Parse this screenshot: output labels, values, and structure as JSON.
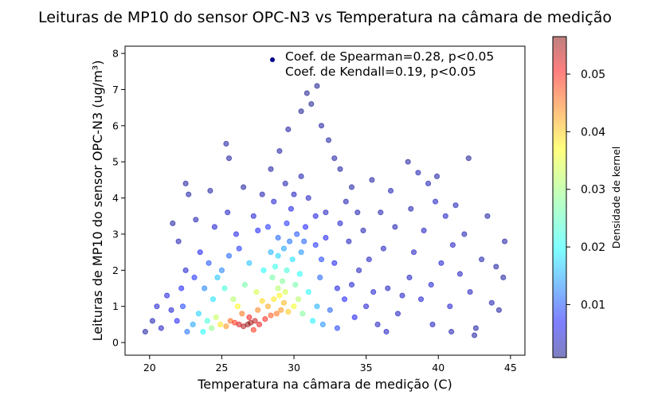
{
  "chart_data": {
    "type": "scatter",
    "title": "Leituras de MP10 do sensor OPC-N3 vs Temperatura na câmara de medição",
    "xlabel": "Temperatura na câmara de medição (C)",
    "ylabel": "Leituras de MP10 do sensor OPC-N3 (ug/m³)",
    "xlim": [
      18.3,
      46.0
    ],
    "ylim": [
      -0.35,
      8.2
    ],
    "x_ticks": [
      20,
      25,
      30,
      35,
      40,
      45
    ],
    "y_ticks": [
      0,
      1,
      2,
      3,
      4,
      5,
      6,
      7,
      8
    ],
    "grid": false,
    "legend": {
      "position": "top-right",
      "entries": [
        "Coef. de Spearman=0.28, p<0.05",
        "Coef. de Kendall=0.19, p<0.05"
      ]
    },
    "colorbar": {
      "label": "Densidade de kernel",
      "colormap": "jet",
      "alpha": 0.5,
      "range": [
        0.0008,
        0.0565
      ],
      "ticks": [
        0.01,
        0.02,
        0.03,
        0.04,
        0.05
      ]
    },
    "point_color_min": "#0000cc",
    "point_color_max": "#8b0000",
    "points": [
      [
        26.8,
        0.5,
        0.056
      ],
      [
        27.0,
        0.55,
        0.055
      ],
      [
        26.5,
        0.45,
        0.054
      ],
      [
        27.3,
        0.6,
        0.053
      ],
      [
        26.2,
        0.5,
        0.052
      ],
      [
        27.6,
        0.5,
        0.051
      ],
      [
        26.9,
        0.7,
        0.05
      ],
      [
        28.0,
        0.65,
        0.049
      ],
      [
        25.9,
        0.55,
        0.048
      ],
      [
        27.2,
        0.35,
        0.048
      ],
      [
        28.4,
        0.75,
        0.046
      ],
      [
        28.8,
        0.8,
        0.044
      ],
      [
        29.1,
        0.9,
        0.042
      ],
      [
        25.6,
        0.6,
        0.045
      ],
      [
        27.5,
        0.9,
        0.043
      ],
      [
        28.2,
        1.0,
        0.041
      ],
      [
        29.3,
        1.1,
        0.04
      ],
      [
        26.4,
        0.8,
        0.044
      ],
      [
        25.3,
        0.45,
        0.042
      ],
      [
        29.6,
        0.85,
        0.039
      ],
      [
        28.6,
        1.2,
        0.037
      ],
      [
        29.0,
        1.3,
        0.036
      ],
      [
        27.8,
        1.15,
        0.038
      ],
      [
        30.0,
        1.0,
        0.035
      ],
      [
        24.9,
        0.5,
        0.037
      ],
      [
        29.4,
        1.4,
        0.033
      ],
      [
        28.9,
        1.5,
        0.031
      ],
      [
        26.1,
        1.0,
        0.036
      ],
      [
        30.3,
        1.2,
        0.031
      ],
      [
        24.6,
        0.7,
        0.032
      ],
      [
        29.2,
        1.7,
        0.028
      ],
      [
        28.5,
        1.8,
        0.027
      ],
      [
        30.1,
        1.6,
        0.027
      ],
      [
        27.4,
        1.4,
        0.033
      ],
      [
        25.8,
        1.2,
        0.031
      ],
      [
        24.3,
        0.4,
        0.029
      ],
      [
        30.6,
        0.8,
        0.028
      ],
      [
        29.5,
        2.0,
        0.024
      ],
      [
        28.7,
        2.1,
        0.023
      ],
      [
        30.4,
        1.9,
        0.022
      ],
      [
        29.9,
        2.3,
        0.02
      ],
      [
        28.9,
        2.4,
        0.019
      ],
      [
        31.0,
        1.4,
        0.022
      ],
      [
        26.6,
        1.6,
        0.027
      ],
      [
        24.0,
        0.6,
        0.024
      ],
      [
        23.7,
        0.3,
        0.022
      ],
      [
        31.3,
        0.6,
        0.021
      ],
      [
        29.3,
        2.6,
        0.016
      ],
      [
        28.4,
        2.5,
        0.017
      ],
      [
        30.5,
        2.5,
        0.015
      ],
      [
        27.9,
        2.0,
        0.022
      ],
      [
        25.2,
        1.5,
        0.024
      ],
      [
        23.4,
        0.8,
        0.019
      ],
      [
        31.6,
        1.0,
        0.017
      ],
      [
        29.7,
        2.8,
        0.013
      ],
      [
        28.9,
        2.9,
        0.012
      ],
      [
        30.2,
        3.0,
        0.011
      ],
      [
        26.9,
        2.2,
        0.018
      ],
      [
        24.7,
        1.8,
        0.018
      ],
      [
        23.0,
        0.5,
        0.016
      ],
      [
        32.0,
        0.5,
        0.015
      ],
      [
        31.8,
        1.8,
        0.012
      ],
      [
        32.5,
        0.9,
        0.012
      ],
      [
        22.6,
        0.3,
        0.013
      ],
      [
        29.5,
        3.3,
        0.009
      ],
      [
        28.2,
        3.2,
        0.009
      ],
      [
        30.8,
        3.2,
        0.008
      ],
      [
        25.5,
        2.4,
        0.012
      ],
      [
        24.1,
        2.2,
        0.011
      ],
      [
        22.3,
        1.0,
        0.01
      ],
      [
        33.0,
        0.4,
        0.01
      ],
      [
        33.5,
        1.2,
        0.008
      ],
      [
        29.8,
        3.7,
        0.006
      ],
      [
        31.5,
        3.5,
        0.006
      ],
      [
        27.5,
        3.1,
        0.008
      ],
      [
        23.5,
        2.5,
        0.007
      ],
      [
        21.9,
        0.6,
        0.008
      ],
      [
        34.2,
        0.7,
        0.007
      ],
      [
        32.8,
        2.2,
        0.007
      ],
      [
        30.0,
        4.1,
        0.004
      ],
      [
        31.0,
        4.0,
        0.004
      ],
      [
        28.6,
        3.9,
        0.005
      ],
      [
        26.0,
        3.0,
        0.006
      ],
      [
        24.5,
        3.2,
        0.005
      ],
      [
        22.5,
        2.0,
        0.005
      ],
      [
        21.5,
        0.9,
        0.005
      ],
      [
        20.8,
        0.4,
        0.004
      ],
      [
        35.0,
        1.0,
        0.005
      ],
      [
        35.8,
        0.5,
        0.004
      ],
      [
        34.5,
        2.0,
        0.004
      ],
      [
        33.8,
        2.8,
        0.004
      ],
      [
        32.2,
        3.6,
        0.004
      ],
      [
        30.5,
        4.6,
        0.003
      ],
      [
        29.4,
        4.4,
        0.003
      ],
      [
        27.8,
        4.1,
        0.003
      ],
      [
        25.4,
        3.6,
        0.004
      ],
      [
        23.2,
        3.4,
        0.003
      ],
      [
        22.0,
        2.8,
        0.003
      ],
      [
        20.2,
        0.6,
        0.003
      ],
      [
        19.7,
        0.3,
        0.002
      ],
      [
        36.5,
        1.5,
        0.004
      ],
      [
        37.2,
        0.8,
        0.004
      ],
      [
        38.0,
        1.8,
        0.004
      ],
      [
        38.8,
        1.2,
        0.005
      ],
      [
        39.5,
        1.6,
        0.005
      ],
      [
        40.2,
        2.2,
        0.005
      ],
      [
        40.8,
        1.0,
        0.005
      ],
      [
        41.5,
        1.9,
        0.004
      ],
      [
        42.2,
        1.4,
        0.004
      ],
      [
        43.0,
        2.3,
        0.003
      ],
      [
        43.7,
        1.1,
        0.003
      ],
      [
        44.5,
        1.8,
        0.002
      ],
      [
        44.6,
        2.8,
        0.002
      ],
      [
        44.2,
        0.9,
        0.002
      ],
      [
        42.6,
        0.4,
        0.002
      ],
      [
        42.5,
        0.2,
        0.002
      ],
      [
        41.8,
        3.0,
        0.003
      ],
      [
        40.5,
        3.5,
        0.004
      ],
      [
        39.8,
        3.9,
        0.004
      ],
      [
        39.3,
        4.4,
        0.003
      ],
      [
        38.6,
        4.7,
        0.003
      ],
      [
        37.9,
        5.0,
        0.002
      ],
      [
        36.7,
        4.2,
        0.003
      ],
      [
        36.0,
        3.6,
        0.003
      ],
      [
        35.4,
        4.5,
        0.002
      ],
      [
        34.8,
        3.1,
        0.003
      ],
      [
        33.6,
        3.9,
        0.003
      ],
      [
        33.2,
        4.8,
        0.002
      ],
      [
        32.8,
        5.1,
        0.002
      ],
      [
        32.4,
        5.6,
        0.002
      ],
      [
        31.9,
        6.0,
        0.002
      ],
      [
        31.2,
        6.6,
        0.001
      ],
      [
        31.6,
        7.1,
        0.001
      ],
      [
        30.9,
        6.9,
        0.001
      ],
      [
        30.5,
        6.4,
        0.001
      ],
      [
        29.6,
        5.9,
        0.002
      ],
      [
        29.0,
        5.3,
        0.002
      ],
      [
        28.4,
        4.8,
        0.002
      ],
      [
        26.5,
        4.3,
        0.002
      ],
      [
        25.3,
        5.5,
        0.002
      ],
      [
        25.5,
        5.1,
        0.002
      ],
      [
        24.2,
        4.2,
        0.002
      ],
      [
        22.7,
        4.1,
        0.002
      ],
      [
        22.5,
        4.4,
        0.002
      ],
      [
        21.6,
        3.3,
        0.002
      ],
      [
        42.1,
        5.1,
        0.001
      ],
      [
        37.5,
        1.3,
        0.004
      ],
      [
        38.3,
        2.5,
        0.004
      ],
      [
        39.0,
        3.1,
        0.004
      ],
      [
        41.0,
        2.7,
        0.004
      ],
      [
        43.4,
        3.5,
        0.002
      ],
      [
        44.0,
        2.1,
        0.002
      ],
      [
        36.2,
        2.6,
        0.004
      ],
      [
        35.5,
        1.4,
        0.005
      ],
      [
        34.0,
        1.6,
        0.005
      ],
      [
        33.0,
        1.5,
        0.006
      ],
      [
        27.2,
        3.5,
        0.005
      ],
      [
        26.2,
        2.6,
        0.009
      ],
      [
        25.0,
        2.0,
        0.014
      ],
      [
        24.4,
        1.2,
        0.02
      ],
      [
        23.8,
        1.5,
        0.014
      ],
      [
        23.1,
        1.8,
        0.009
      ],
      [
        22.2,
        1.5,
        0.008
      ],
      [
        21.2,
        1.3,
        0.006
      ],
      [
        20.5,
        1.0,
        0.005
      ],
      [
        31.5,
        2.7,
        0.009
      ],
      [
        32.2,
        2.9,
        0.007
      ],
      [
        31.9,
        2.3,
        0.01
      ],
      [
        33.2,
        3.3,
        0.005
      ],
      [
        30.7,
        2.8,
        0.012
      ],
      [
        37.0,
        3.2,
        0.003
      ],
      [
        36.4,
        0.3,
        0.004
      ],
      [
        39.6,
        0.5,
        0.004
      ],
      [
        40.9,
        0.3,
        0.003
      ],
      [
        41.2,
        3.8,
        0.003
      ],
      [
        39.9,
        4.6,
        0.002
      ],
      [
        38.1,
        3.7,
        0.003
      ],
      [
        35.2,
        2.3,
        0.004
      ],
      [
        34.4,
        3.6,
        0.003
      ],
      [
        34.0,
        4.3,
        0.002
      ]
    ]
  }
}
